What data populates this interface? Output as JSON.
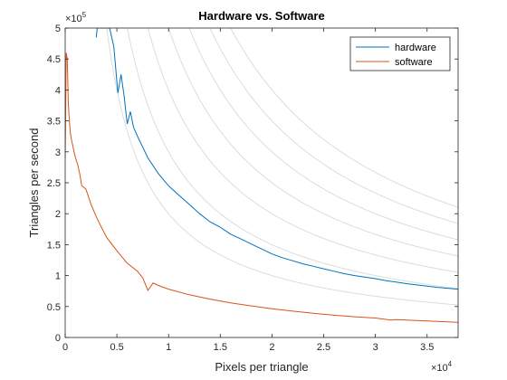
{
  "chart_data": {
    "type": "line",
    "title": "Hardware vs. Software",
    "xlabel": "Pixels per triangle",
    "ylabel": "Triangles per second",
    "xlim": [
      0,
      38000
    ],
    "ylim": [
      0,
      500000
    ],
    "x_ticks": [
      0,
      5000,
      10000,
      15000,
      20000,
      25000,
      30000,
      35000
    ],
    "x_tick_labels": [
      "0",
      "0.5",
      "1",
      "1.5",
      "2",
      "2.5",
      "3",
      "3.5"
    ],
    "y_ticks": [
      0,
      50000,
      100000,
      150000,
      200000,
      250000,
      300000,
      350000,
      400000,
      450000,
      500000
    ],
    "y_tick_labels": [
      "0",
      "0.5",
      "1",
      "1.5",
      "2",
      "2.5",
      "3",
      "3.5",
      "4",
      "4.5",
      "5"
    ],
    "x_exponent": {
      "base": "×10",
      "power": "4"
    },
    "y_exponent": {
      "base": "×10",
      "power": "5"
    },
    "legend_position": "top-right",
    "grid": false,
    "reference_curves": {
      "description_type": "constant pixel rate hyperbolas",
      "constants": [
        2000000000,
        3000000000,
        4000000000,
        5000000000,
        6000000000,
        7000000000,
        8000000000
      ],
      "color": "#dcdcdc"
    },
    "series": [
      {
        "name": "hardware",
        "color": "#0072BD",
        "x": [
          3000,
          3100,
          3300,
          4000,
          4300,
          4700,
          5100,
          5400,
          5700,
          6000,
          6300,
          6600,
          7000,
          8000,
          9000,
          10000,
          11000,
          12000,
          13000,
          14000,
          15000,
          16000,
          17000,
          18000,
          19000,
          20000,
          21000,
          22000,
          23000,
          24000,
          25000,
          26000,
          27000,
          28000,
          29000,
          30000,
          31000,
          32000,
          33000,
          34000,
          35000,
          36000,
          37000,
          38000
        ],
        "y": [
          485000,
          500000,
          500000,
          500000,
          500000,
          470000,
          395000,
          425000,
          390000,
          345000,
          365000,
          340000,
          325000,
          290000,
          265000,
          245000,
          230000,
          215000,
          200000,
          187000,
          178000,
          167000,
          159000,
          151000,
          143000,
          135000,
          129000,
          124000,
          119000,
          115000,
          111000,
          107000,
          103000,
          100000,
          97500,
          95000,
          92000,
          89500,
          87000,
          85000,
          83000,
          81000,
          79500,
          78000
        ]
      },
      {
        "name": "software",
        "color": "#D95319",
        "x": [
          0,
          100,
          200,
          300,
          400,
          500,
          600,
          800,
          1000,
          1200,
          1400,
          1600,
          2000,
          2500,
          3000,
          3500,
          4000,
          5000,
          6000,
          7000,
          7500,
          8000,
          8500,
          9000,
          10000,
          12000,
          14000,
          16000,
          18000,
          20000,
          22000,
          24000,
          26000,
          28000,
          30000,
          31500,
          32000,
          34000,
          36000,
          38000
        ],
        "y": [
          290000,
          460000,
          450000,
          380000,
          350000,
          330000,
          320000,
          305000,
          290000,
          280000,
          265000,
          245000,
          240000,
          215000,
          195000,
          178000,
          162000,
          140000,
          120000,
          107000,
          96000,
          76000,
          88000,
          84000,
          78000,
          69000,
          62000,
          56000,
          51000,
          46500,
          42500,
          39000,
          36000,
          33500,
          31500,
          28000,
          29000,
          27500,
          26000,
          24500
        ]
      }
    ]
  }
}
